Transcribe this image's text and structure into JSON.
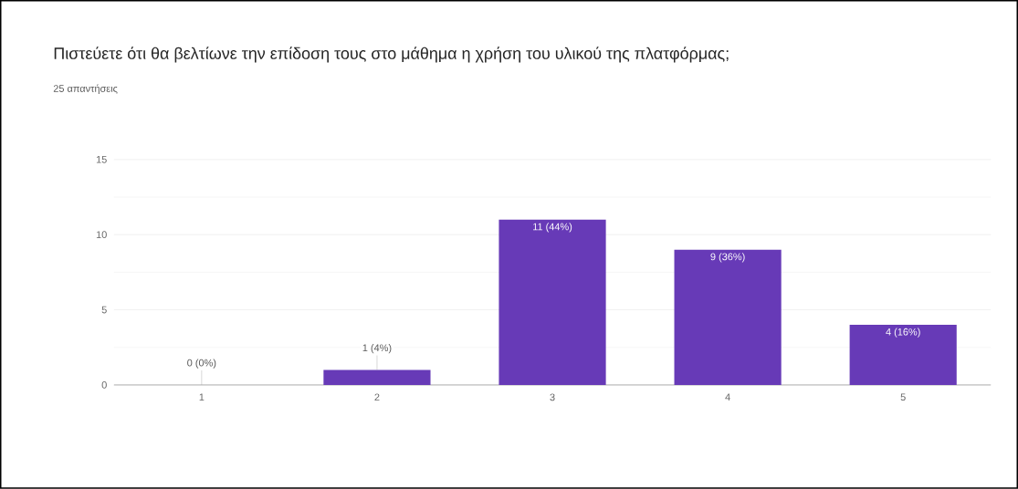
{
  "chart_data": {
    "type": "bar",
    "title": "Πιστεύετε ότι θα βελτίωνε την επίδοση τους στο μάθημα η χρήση του υλικού της πλατφόρμας;",
    "subtitle": "25 απαντήσεις",
    "categories": [
      "1",
      "2",
      "3",
      "4",
      "5"
    ],
    "values": [
      0,
      1,
      11,
      9,
      4
    ],
    "value_labels": [
      "0 (0%)",
      "1 (4%)",
      "11 (44%)",
      "9 (36%)",
      "4 (16%)"
    ],
    "color": "#673ab7",
    "ylim": [
      0,
      15
    ],
    "yticks": [
      0,
      5,
      10,
      15
    ],
    "grid": "y"
  }
}
